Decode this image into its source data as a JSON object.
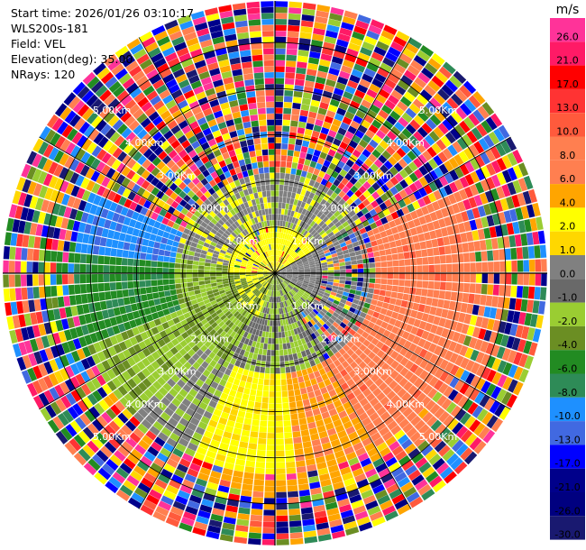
{
  "info": {
    "start_time": "Start time: 2026/01/26 03:10:17",
    "instrument": "WLS200s-181",
    "field": "Field: VEL",
    "elevation": "Elevation(deg): 35.00",
    "nrays": "NRays: 120"
  },
  "chart_data": {
    "type": "heatmap",
    "projection": "polar PPI",
    "title": "",
    "field": "VEL",
    "elevation_deg": 35.0,
    "n_rays": 120,
    "range_rings_km": [
      1.0,
      2.0,
      3.0,
      4.0,
      5.0
    ],
    "ring_labels": [
      "1.0Km",
      "2.00Km",
      "3.00Km",
      "4.00Km",
      "5.00Km"
    ],
    "max_range_km": 5.9,
    "grid": true,
    "colorbar": {
      "unit": "m/s",
      "tick_labels": [
        "26.0",
        "21.0",
        "17.0",
        "13.0",
        "10.0",
        "8.0",
        "6.0",
        "4.0",
        "2.0",
        "1.0",
        "0.0",
        "-1.0",
        "-2.0",
        "-4.0",
        "-6.0",
        "-8.0",
        "-10.0",
        "-13.0",
        "-17.0",
        "-21.0",
        "-26.0",
        "-30.0"
      ],
      "colors": [
        "#ff3399",
        "#ff1a66",
        "#ff0000",
        "#ff3333",
        "#ff5a3c",
        "#ff7f50",
        "#ff7f50",
        "#ffa500",
        "#ffff00",
        "#ffd700",
        "#808080",
        "#696969",
        "#9acd32",
        "#6b8e23",
        "#228b22",
        "#2e8b57",
        "#1e90ff",
        "#4169e1",
        "#0000ff",
        "#00008b",
        "#000080",
        "#191970"
      ]
    },
    "sectors": [
      {
        "azimuth_from": 200,
        "azimuth_to": 290,
        "dominant_velocity": "-6.0 to -10.0"
      },
      {
        "azimuth_from": 60,
        "azimuth_to": 150,
        "dominant_velocity": "8.0 to 10.0"
      },
      {
        "azimuth_from": 150,
        "azimuth_to": 200,
        "dominant_velocity": "2.0 to 6.0"
      },
      {
        "azimuth_from": 290,
        "azimuth_to": 60,
        "dominant_velocity": "mixed / noise"
      }
    ]
  }
}
